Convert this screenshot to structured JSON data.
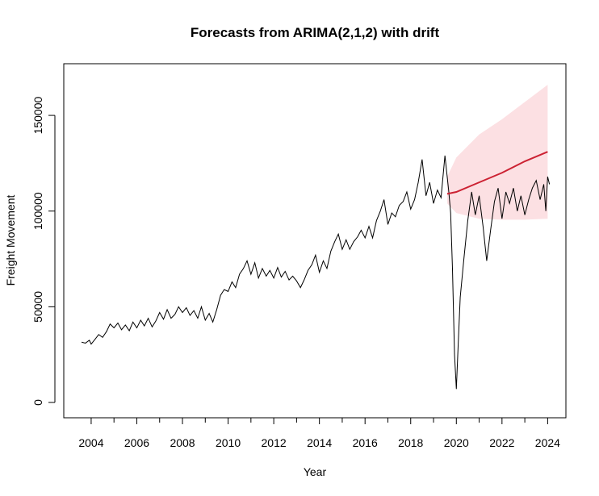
{
  "chart_data": {
    "type": "line",
    "title": "Forecasts from ARIMA(2,1,2) with drift",
    "xlabel": "Year",
    "ylabel": "Freight Movement",
    "xlim": [
      2002.8,
      2024.8
    ],
    "ylim": [
      -8000,
      177000
    ],
    "x_ticks": [
      2004,
      2006,
      2008,
      2010,
      2012,
      2014,
      2016,
      2018,
      2020,
      2022,
      2024
    ],
    "x_minor_step": 1,
    "y_ticks": [
      0,
      50000,
      100000,
      150000
    ],
    "grid": false,
    "legend": "none",
    "colors": {
      "actual": "#000000",
      "forecast": "#cc2233",
      "band": "#fce0e3"
    },
    "series": [
      {
        "kind": "observed",
        "points": [
          [
            2003.58,
            31500
          ],
          [
            2003.75,
            31000
          ],
          [
            2003.92,
            32500
          ],
          [
            2004.0,
            30500
          ],
          [
            2004.17,
            33000
          ],
          [
            2004.33,
            35500
          ],
          [
            2004.5,
            34000
          ],
          [
            2004.67,
            37000
          ],
          [
            2004.83,
            41000
          ],
          [
            2005.0,
            39000
          ],
          [
            2005.17,
            41500
          ],
          [
            2005.33,
            38000
          ],
          [
            2005.5,
            40500
          ],
          [
            2005.67,
            37500
          ],
          [
            2005.83,
            42000
          ],
          [
            2006.0,
            39000
          ],
          [
            2006.17,
            43000
          ],
          [
            2006.33,
            40000
          ],
          [
            2006.5,
            44000
          ],
          [
            2006.67,
            39500
          ],
          [
            2006.83,
            42500
          ],
          [
            2007.0,
            47000
          ],
          [
            2007.17,
            43500
          ],
          [
            2007.33,
            48500
          ],
          [
            2007.5,
            44000
          ],
          [
            2007.67,
            46000
          ],
          [
            2007.83,
            50000
          ],
          [
            2008.0,
            47000
          ],
          [
            2008.17,
            49500
          ],
          [
            2008.33,
            45500
          ],
          [
            2008.5,
            48000
          ],
          [
            2008.67,
            44000
          ],
          [
            2008.83,
            50000
          ],
          [
            2009.0,
            43000
          ],
          [
            2009.17,
            46500
          ],
          [
            2009.33,
            42000
          ],
          [
            2009.5,
            48500
          ],
          [
            2009.67,
            56000
          ],
          [
            2009.83,
            59000
          ],
          [
            2010.0,
            58000
          ],
          [
            2010.17,
            63000
          ],
          [
            2010.33,
            60000
          ],
          [
            2010.5,
            67000
          ],
          [
            2010.67,
            70000
          ],
          [
            2010.83,
            74000
          ],
          [
            2011.0,
            67000
          ],
          [
            2011.17,
            73000
          ],
          [
            2011.33,
            65000
          ],
          [
            2011.5,
            70000
          ],
          [
            2011.67,
            66000
          ],
          [
            2011.83,
            69000
          ],
          [
            2012.0,
            65000
          ],
          [
            2012.17,
            70500
          ],
          [
            2012.33,
            65500
          ],
          [
            2012.5,
            68500
          ],
          [
            2012.67,
            64000
          ],
          [
            2012.83,
            66000
          ],
          [
            2013.0,
            63500
          ],
          [
            2013.17,
            60000
          ],
          [
            2013.33,
            64000
          ],
          [
            2013.5,
            69000
          ],
          [
            2013.67,
            72000
          ],
          [
            2013.83,
            77000
          ],
          [
            2014.0,
            68000
          ],
          [
            2014.17,
            74000
          ],
          [
            2014.33,
            70000
          ],
          [
            2014.5,
            79000
          ],
          [
            2014.67,
            84000
          ],
          [
            2014.83,
            88000
          ],
          [
            2015.0,
            80000
          ],
          [
            2015.17,
            85000
          ],
          [
            2015.33,
            80000
          ],
          [
            2015.5,
            84000
          ],
          [
            2015.67,
            86500
          ],
          [
            2015.83,
            90000
          ],
          [
            2016.0,
            86000
          ],
          [
            2016.17,
            92000
          ],
          [
            2016.33,
            86000
          ],
          [
            2016.5,
            95000
          ],
          [
            2016.67,
            100000
          ],
          [
            2016.83,
            106000
          ],
          [
            2017.0,
            93000
          ],
          [
            2017.17,
            99000
          ],
          [
            2017.33,
            97000
          ],
          [
            2017.5,
            103000
          ],
          [
            2017.67,
            105000
          ],
          [
            2017.83,
            110000
          ],
          [
            2018.0,
            101000
          ],
          [
            2018.17,
            106000
          ],
          [
            2018.33,
            115000
          ],
          [
            2018.5,
            127000
          ],
          [
            2018.67,
            108000
          ],
          [
            2018.83,
            115000
          ],
          [
            2019.0,
            104000
          ],
          [
            2019.17,
            111000
          ],
          [
            2019.33,
            107000
          ],
          [
            2019.5,
            129000
          ],
          [
            2019.67,
            110000
          ],
          [
            2019.75,
            99000
          ],
          [
            2019.83,
            70000
          ],
          [
            2019.92,
            25000
          ],
          [
            2020.0,
            7000
          ],
          [
            2020.08,
            30000
          ],
          [
            2020.17,
            55000
          ],
          [
            2020.33,
            75000
          ],
          [
            2020.5,
            95000
          ],
          [
            2020.67,
            110000
          ],
          [
            2020.83,
            98000
          ],
          [
            2021.0,
            108000
          ],
          [
            2021.17,
            92000
          ],
          [
            2021.33,
            74000
          ],
          [
            2021.5,
            90000
          ],
          [
            2021.67,
            105000
          ],
          [
            2021.83,
            112000
          ],
          [
            2022.0,
            96000
          ],
          [
            2022.17,
            110000
          ],
          [
            2022.33,
            104000
          ],
          [
            2022.5,
            112000
          ],
          [
            2022.67,
            100000
          ],
          [
            2022.83,
            108000
          ],
          [
            2023.0,
            98000
          ],
          [
            2023.17,
            106000
          ],
          [
            2023.33,
            112000
          ],
          [
            2023.5,
            116000
          ],
          [
            2023.67,
            106000
          ],
          [
            2023.83,
            114000
          ],
          [
            2023.92,
            100000
          ],
          [
            2024.0,
            118000
          ],
          [
            2024.08,
            114000
          ]
        ]
      },
      {
        "kind": "forecast",
        "points": [
          [
            2019.6,
            109000
          ],
          [
            2020.0,
            110000
          ],
          [
            2021.0,
            115000
          ],
          [
            2022.0,
            120000
          ],
          [
            2023.0,
            126000
          ],
          [
            2024.0,
            131000
          ]
        ]
      },
      {
        "kind": "prediction-interval",
        "upper": [
          [
            2019.6,
            118000
          ],
          [
            2020.0,
            128000
          ],
          [
            2021.0,
            140000
          ],
          [
            2022.0,
            148000
          ],
          [
            2023.0,
            157000
          ],
          [
            2024.0,
            166000
          ]
        ],
        "lower": [
          [
            2019.6,
            104000
          ],
          [
            2020.0,
            99000
          ],
          [
            2021.0,
            96000
          ],
          [
            2022.0,
            95500
          ],
          [
            2023.0,
            95500
          ],
          [
            2024.0,
            96000
          ]
        ]
      }
    ]
  }
}
